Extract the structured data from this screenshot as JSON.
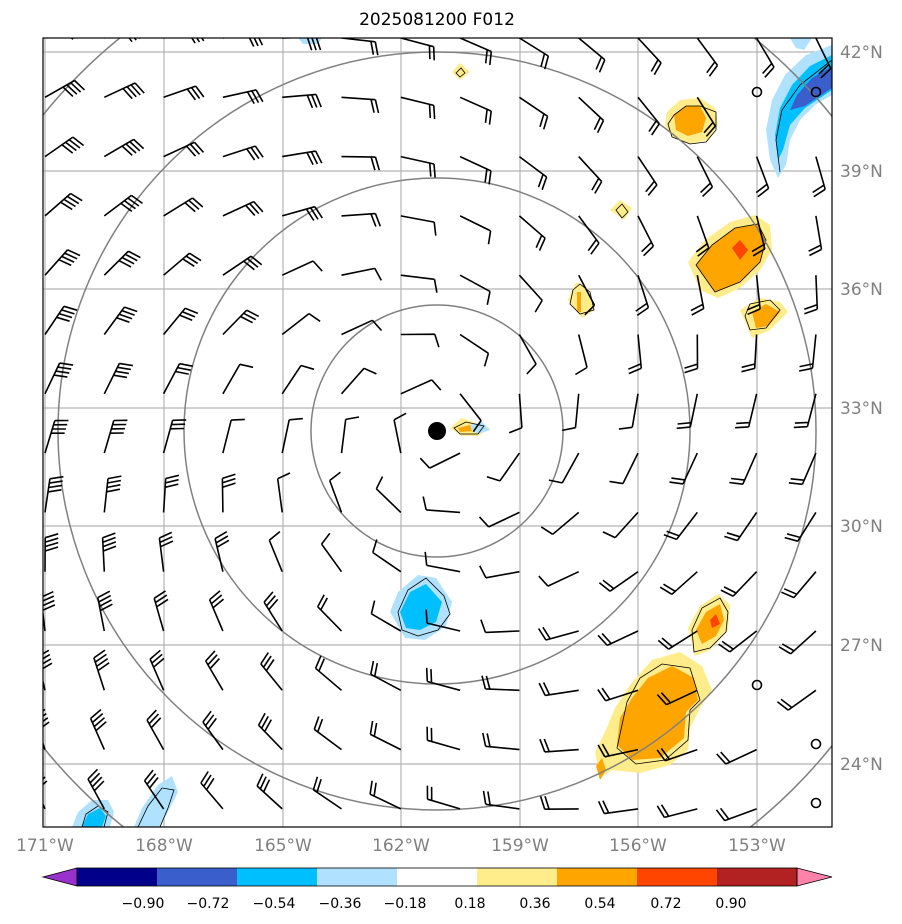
{
  "title": "2025081200 F012",
  "map": {
    "lat_ticks": [
      "42°N",
      "39°N",
      "36°N",
      "33°N",
      "30°N",
      "27°N",
      "24°N"
    ],
    "lon_ticks": [
      "171°W",
      "168°W",
      "165°W",
      "162°W",
      "159°W",
      "156°W",
      "153°W"
    ],
    "center_marker": "storm-center-dot",
    "range_rings": 4
  },
  "colorbar": {
    "levels": [
      "−0.90",
      "−0.72",
      "−0.54",
      "−0.36",
      "−0.18",
      "0.18",
      "0.36",
      "0.54",
      "0.72",
      "0.90"
    ],
    "colors": [
      "#9932cc",
      "#00008b",
      "#3a5fcd",
      "#00bfff",
      "#b0e2ff",
      "#ffffff",
      "#ffec8b",
      "#ffa500",
      "#ff4500",
      "#b22222",
      "#ff82ab"
    ]
  }
}
